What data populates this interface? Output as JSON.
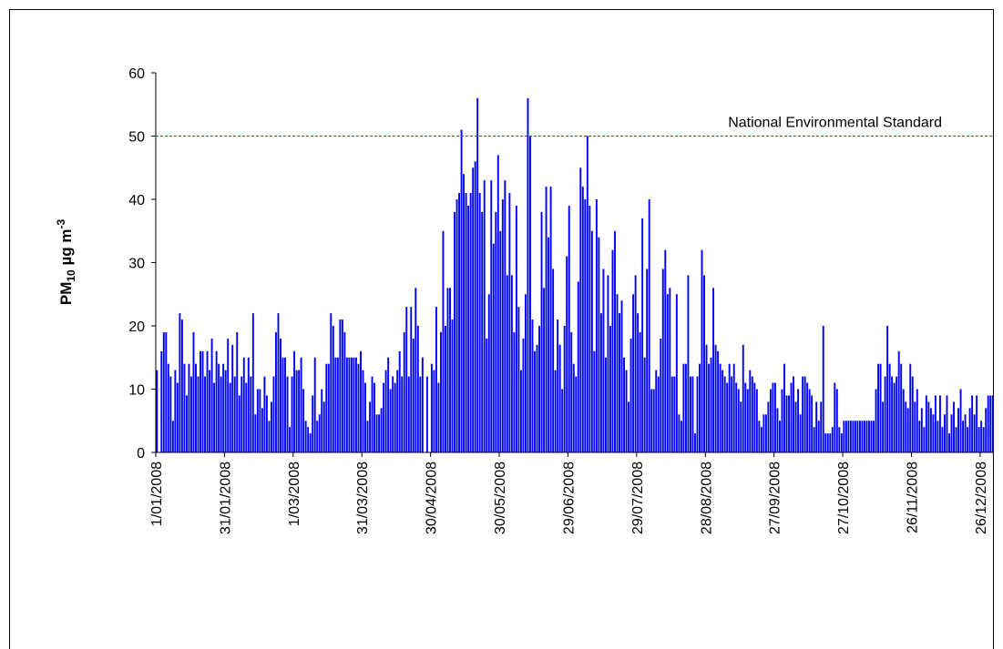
{
  "chart_data": {
    "type": "bar",
    "ylabel": {
      "base": "PM",
      "sub": "10",
      "mid": " µg m",
      "sup": "-3"
    },
    "categories": [
      "1/01/2008",
      null,
      null,
      null,
      null,
      null,
      null,
      null,
      null,
      null,
      null,
      null,
      null,
      null,
      null,
      null,
      null,
      null,
      null,
      null,
      null,
      null,
      null,
      null,
      null,
      null,
      null,
      null,
      null,
      null,
      "31/01/2008",
      null,
      null,
      null,
      null,
      null,
      null,
      null,
      null,
      null,
      null,
      null,
      null,
      null,
      null,
      null,
      null,
      null,
      null,
      null,
      null,
      null,
      null,
      null,
      null,
      null,
      null,
      null,
      null,
      null,
      "1/03/2008",
      null,
      null,
      null,
      null,
      null,
      null,
      null,
      null,
      null,
      null,
      null,
      null,
      null,
      null,
      null,
      null,
      null,
      null,
      null,
      null,
      null,
      null,
      null,
      null,
      null,
      null,
      null,
      null,
      null,
      "31/03/2008",
      null,
      null,
      null,
      null,
      null,
      null,
      null,
      null,
      null,
      null,
      null,
      null,
      null,
      null,
      null,
      null,
      null,
      null,
      null,
      null,
      null,
      null,
      null,
      null,
      null,
      null,
      null,
      null,
      null,
      "30/04/2008",
      null,
      null,
      null,
      null,
      null,
      null,
      null,
      null,
      null,
      null,
      null,
      null,
      null,
      null,
      null,
      null,
      null,
      null,
      null,
      null,
      null,
      null,
      null,
      null,
      null,
      null,
      null,
      null,
      null,
      "30/05/2008",
      null,
      null,
      null,
      null,
      null,
      null,
      null,
      null,
      null,
      null,
      null,
      null,
      null,
      null,
      null,
      null,
      null,
      null,
      null,
      null,
      null,
      null,
      null,
      null,
      null,
      null,
      null,
      null,
      null,
      "29/06/2008",
      null,
      null,
      null,
      null,
      null,
      null,
      null,
      null,
      null,
      null,
      null,
      null,
      null,
      null,
      null,
      null,
      null,
      null,
      null,
      null,
      null,
      null,
      null,
      null,
      null,
      null,
      null,
      null,
      null,
      "29/07/2008",
      null,
      null,
      null,
      null,
      null,
      null,
      null,
      null,
      null,
      null,
      null,
      null,
      null,
      null,
      null,
      null,
      null,
      null,
      null,
      null,
      null,
      null,
      null,
      null,
      null,
      null,
      null,
      null,
      null,
      "28/08/2008",
      null,
      null,
      null,
      null,
      null,
      null,
      null,
      null,
      null,
      null,
      null,
      null,
      null,
      null,
      null,
      null,
      null,
      null,
      null,
      null,
      null,
      null,
      null,
      null,
      null,
      null,
      null,
      null,
      null,
      "27/09/2008",
      null,
      null,
      null,
      null,
      null,
      null,
      null,
      null,
      null,
      null,
      null,
      null,
      null,
      null,
      null,
      null,
      null,
      null,
      null,
      null,
      null,
      null,
      null,
      null,
      null,
      null,
      null,
      null,
      null,
      "27/10/2008",
      null,
      null,
      null,
      null,
      null,
      null,
      null,
      null,
      null,
      null,
      null,
      null,
      null,
      null,
      null,
      null,
      null,
      null,
      null,
      null,
      null,
      null,
      null,
      null,
      null,
      null,
      null,
      null,
      null,
      "26/11/2008",
      null,
      null,
      null,
      null,
      null,
      null,
      null,
      null,
      null,
      null,
      null,
      null,
      null,
      null,
      null,
      null,
      null,
      null,
      null,
      null,
      null,
      null,
      null,
      null,
      null,
      null,
      null,
      null,
      null,
      "26/12/2008",
      null,
      null,
      null,
      null,
      null
    ],
    "values": [
      13,
      0,
      16,
      19,
      19,
      14,
      12,
      5,
      13,
      11,
      22,
      21,
      14,
      9,
      14,
      12,
      19,
      14,
      12,
      16,
      16,
      12,
      16,
      13,
      18,
      11,
      16,
      14,
      12,
      14,
      13,
      18,
      11,
      17,
      12,
      19,
      9,
      12,
      15,
      11,
      15,
      12,
      22,
      6,
      10,
      10,
      7,
      12,
      9,
      5,
      8,
      12,
      19,
      22,
      18,
      15,
      15,
      12,
      4,
      12,
      16,
      13,
      13,
      15,
      10,
      5,
      4,
      3,
      9,
      15,
      5,
      6,
      10,
      8,
      14,
      14,
      22,
      20,
      15,
      15,
      21,
      21,
      19,
      15,
      15,
      15,
      15,
      15,
      14,
      16,
      13,
      11,
      5,
      8,
      12,
      11,
      6,
      6,
      7,
      11,
      13,
      15,
      10,
      12,
      11,
      13,
      16,
      12,
      19,
      23,
      12,
      23,
      18,
      26,
      20,
      12,
      15,
      0,
      12,
      0,
      14,
      13,
      23,
      11,
      19,
      35,
      20,
      26,
      26,
      21,
      38,
      40,
      41,
      51,
      44,
      41,
      39,
      41,
      45,
      46,
      56,
      41,
      38,
      43,
      18,
      25,
      43,
      33,
      38,
      47,
      35,
      40,
      43,
      28,
      41,
      28,
      19,
      39,
      23,
      13,
      18,
      25,
      56,
      50,
      21,
      16,
      17,
      20,
      38,
      26,
      42,
      34,
      42,
      29,
      13,
      21,
      17,
      10,
      20,
      31,
      39,
      19,
      14,
      12,
      27,
      45,
      42,
      40,
      50,
      39,
      35,
      16,
      40,
      34,
      22,
      29,
      15,
      28,
      20,
      32,
      35,
      25,
      22,
      24,
      15,
      13,
      8,
      18,
      25,
      28,
      22,
      19,
      37,
      15,
      29,
      40,
      10,
      10,
      13,
      12,
      18,
      29,
      32,
      25,
      26,
      12,
      12,
      25,
      6,
      5,
      14,
      14,
      28,
      12,
      12,
      3,
      12,
      14,
      32,
      28,
      17,
      14,
      15,
      26,
      17,
      16,
      14,
      13,
      12,
      11,
      14,
      12,
      14,
      11,
      10,
      8,
      17,
      11,
      10,
      13,
      12,
      11,
      10,
      5,
      4,
      6,
      6,
      8,
      10,
      11,
      11,
      7,
      5,
      10,
      14,
      9,
      9,
      11,
      12,
      8,
      10,
      6,
      12,
      12,
      11,
      10,
      9,
      4,
      8,
      5,
      8,
      20,
      3,
      3,
      3,
      4,
      11,
      10,
      4,
      3,
      5,
      5,
      5,
      5,
      5,
      5,
      5,
      5,
      5,
      5,
      5,
      5,
      5,
      5,
      10,
      14,
      14,
      8,
      12,
      20,
      14,
      12,
      11,
      12,
      16,
      14,
      10,
      8,
      7,
      14,
      12,
      8,
      10,
      5,
      7,
      4,
      9,
      8,
      7,
      6,
      9,
      5,
      9,
      4,
      6,
      9,
      3,
      6,
      8,
      4,
      7,
      10,
      5,
      6,
      4,
      7,
      9,
      6,
      9,
      4,
      5,
      4,
      7,
      9,
      9,
      9
    ],
    "color": "#0000ff",
    "ylim": [
      0,
      60
    ],
    "yticks": [
      0,
      10,
      20,
      30,
      40,
      50,
      60
    ],
    "reference_line": {
      "value": 50,
      "label": "National Environmental Standard",
      "color": "#ff0000"
    }
  }
}
